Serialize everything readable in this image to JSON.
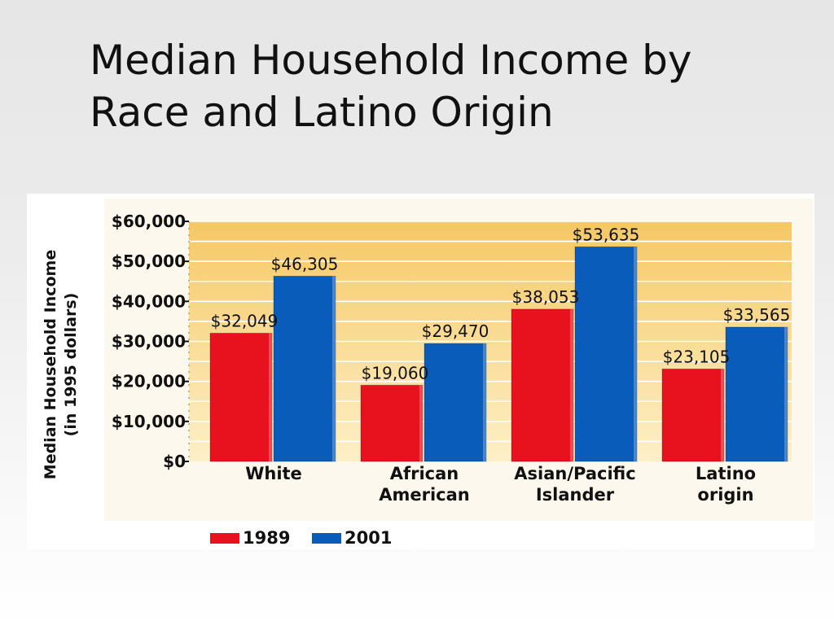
{
  "slide": {
    "title_line1": "Median Household Income by",
    "title_line2": "Race and Latino Origin"
  },
  "chart_data": {
    "type": "bar",
    "categories": [
      [
        "White"
      ],
      [
        "African",
        "American"
      ],
      [
        "Asian/Pacific",
        "Islander"
      ],
      [
        "Latino",
        "origin"
      ]
    ],
    "series": [
      {
        "name": "1989",
        "color": "#e8111e",
        "values": [
          32049,
          19060,
          38053,
          23105
        ],
        "labels": [
          "$32,049",
          "$19,060",
          "$38,053",
          "$23,105"
        ]
      },
      {
        "name": "2001",
        "color": "#0a5cbb",
        "values": [
          46305,
          29470,
          53635,
          33565
        ],
        "labels": [
          "$46,305",
          "$29,470",
          "$53,635",
          "$33,565"
        ]
      }
    ],
    "ylabel_line1": "Median Household Income",
    "ylabel_line2": "(in 1995 dollars)",
    "yticks": [
      0,
      10000,
      20000,
      30000,
      40000,
      50000,
      60000
    ],
    "ytick_labels": [
      "$0",
      "$10,000",
      "$20,000",
      "$30,000",
      "$40,000",
      "$50,000",
      "$60,000"
    ],
    "ylim": [
      0,
      60000
    ],
    "grid": true,
    "legend_position": "bottom-left",
    "plot_background": [
      "#f6c865",
      "#fdf0c8"
    ]
  }
}
